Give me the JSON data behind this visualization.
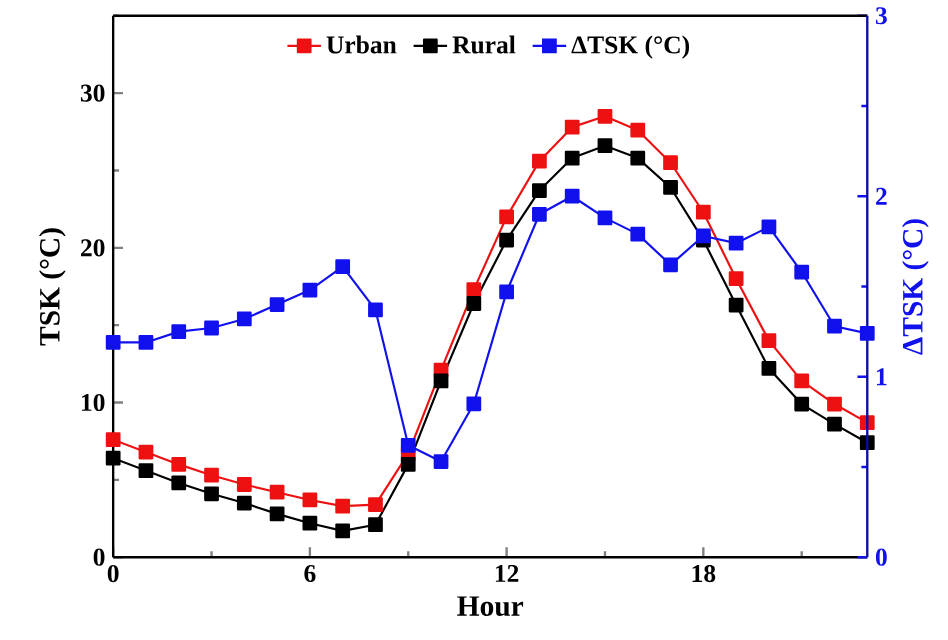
{
  "chart_data": {
    "type": "line",
    "xlabel": "Hour",
    "ylabel": "TSK (°C)",
    "y2label": "ΔTSK (°C)",
    "x": [
      0,
      1,
      2,
      3,
      4,
      5,
      6,
      7,
      8,
      9,
      10,
      11,
      12,
      13,
      14,
      15,
      16,
      17,
      18,
      19,
      20,
      21,
      22,
      23
    ],
    "series": [
      {
        "name": "Urban",
        "color": "#ee1111",
        "values": [
          7.6,
          6.8,
          6.0,
          5.3,
          4.7,
          4.2,
          3.7,
          3.3,
          3.4,
          6.7,
          12.1,
          17.3,
          22.0,
          25.6,
          27.8,
          28.5,
          27.6,
          25.5,
          22.3,
          18.0,
          14.0,
          11.4,
          9.9,
          8.7
        ]
      },
      {
        "name": "Rural",
        "color": "#000000",
        "values": [
          6.4,
          5.6,
          4.8,
          4.1,
          3.5,
          2.8,
          2.2,
          1.7,
          2.1,
          6.0,
          11.4,
          16.4,
          20.5,
          23.7,
          25.8,
          26.6,
          25.8,
          23.9,
          20.5,
          16.3,
          12.2,
          9.9,
          8.6,
          7.4
        ]
      },
      {
        "name": "ΔTSK (°C)",
        "color": "#1111ee",
        "axis": "y2",
        "values": [
          1.19,
          1.19,
          1.25,
          1.27,
          1.32,
          1.4,
          1.48,
          1.61,
          1.37,
          0.62,
          0.53,
          0.85,
          1.47,
          1.9,
          2.0,
          1.88,
          1.79,
          1.62,
          1.78,
          1.74,
          1.83,
          1.58,
          1.28,
          1.24
        ]
      }
    ],
    "xlim": [
      0,
      23
    ],
    "xticks": [
      0,
      {
        "value": 3,
        "label": null
      },
      6,
      {
        "value": 9,
        "label": null
      },
      12,
      {
        "value": 15,
        "label": null
      },
      18,
      {
        "value": 21,
        "label": null
      }
    ],
    "ylim": [
      0,
      35
    ],
    "yticks": [
      0,
      {
        "value": 5,
        "label": null
      },
      10,
      {
        "value": 15,
        "label": null
      },
      20,
      {
        "value": 25,
        "label": null
      },
      30,
      {
        "value": 35,
        "label": null
      }
    ],
    "y2lim": [
      0,
      3
    ],
    "y2ticks": [
      0,
      {
        "value": 0.5,
        "label": null
      },
      1,
      {
        "value": 1.5,
        "label": null
      },
      2,
      {
        "value": 2.5,
        "label": null
      },
      3
    ],
    "marker": "square",
    "line_style": "solid",
    "legend": "top",
    "grid": false
  }
}
